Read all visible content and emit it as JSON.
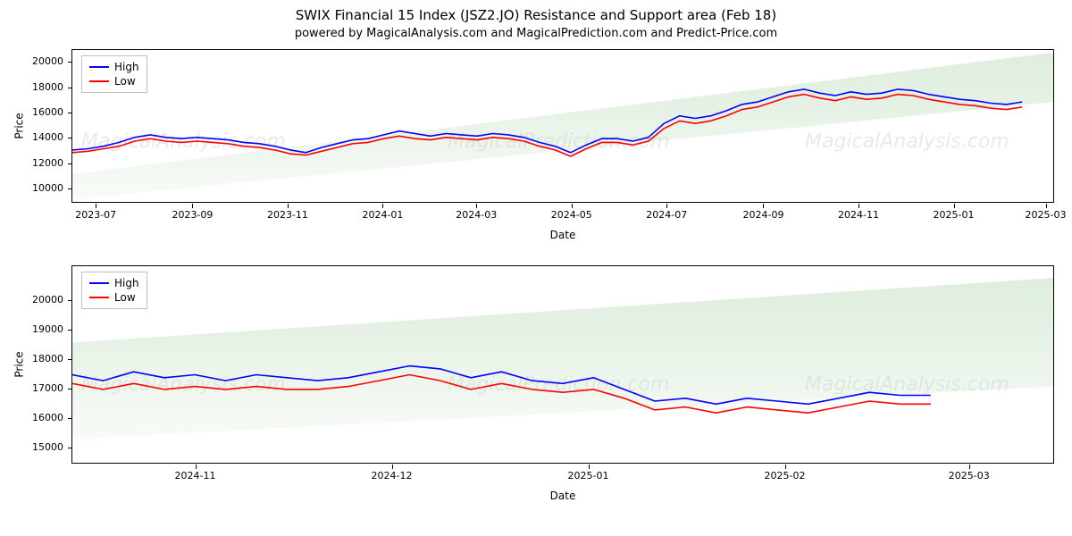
{
  "title": "SWIX Financial 15 Index (JSZ2.JO) Resistance and Support area (Feb 18)",
  "subtitle": "powered by MagicalAnalysis.com and MagicalPrediction.com and Predict-Price.com",
  "watermark_texts": [
    "MagicalAnalysis.com",
    "MagicalPrediction.com"
  ],
  "legend": {
    "items": [
      {
        "label": "High",
        "color": "#0000ff"
      },
      {
        "label": "Low",
        "color": "#ff0000"
      }
    ]
  },
  "axis_labels": {
    "x": "Date",
    "y": "Price"
  },
  "colors": {
    "background": "#ffffff",
    "border": "#000000",
    "text": "#000000",
    "band_fill": "#c5e0c3",
    "band_stroke": "#c5e0c3",
    "high_line": "#0000ff",
    "low_line": "#ff0000",
    "watermark": "#888888"
  },
  "line_width": 1.6,
  "tick_fontsize": 11,
  "label_fontsize": 12,
  "title_fontsize": 15,
  "subtitle_fontsize": 13,
  "chart_top": {
    "type": "line",
    "x_range": [
      0,
      630
    ],
    "y_range": [
      9000,
      21000
    ],
    "y_ticks": [
      10000,
      12000,
      14000,
      16000,
      18000,
      20000
    ],
    "x_ticks": [
      {
        "pos": 15,
        "label": "2023-07"
      },
      {
        "pos": 77,
        "label": "2023-09"
      },
      {
        "pos": 138,
        "label": "2023-11"
      },
      {
        "pos": 199,
        "label": "2024-01"
      },
      {
        "pos": 259,
        "label": "2024-03"
      },
      {
        "pos": 320,
        "label": "2024-05"
      },
      {
        "pos": 381,
        "label": "2024-07"
      },
      {
        "pos": 443,
        "label": "2024-09"
      },
      {
        "pos": 504,
        "label": "2024-11"
      },
      {
        "pos": 565,
        "label": "2025-01"
      },
      {
        "pos": 624,
        "label": "2025-03"
      }
    ],
    "band": {
      "x": [
        0,
        630
      ],
      "upper": [
        11200,
        20800
      ],
      "lower": [
        9200,
        16900
      ],
      "opacity_stops": [
        0.12,
        0.28,
        0.45,
        0.55
      ]
    },
    "series_x": [
      0,
      10,
      20,
      30,
      40,
      50,
      60,
      70,
      80,
      90,
      100,
      110,
      120,
      130,
      140,
      150,
      160,
      170,
      180,
      190,
      200,
      210,
      220,
      230,
      240,
      250,
      260,
      270,
      280,
      290,
      300,
      310,
      320,
      330,
      340,
      350,
      360,
      370,
      380,
      390,
      400,
      410,
      420,
      430,
      440,
      450,
      460,
      470,
      480,
      490,
      500,
      510,
      520,
      530,
      540,
      550,
      560,
      570,
      580,
      590,
      600,
      610
    ],
    "series_high": [
      13100,
      13200,
      13400,
      13700,
      14100,
      14300,
      14100,
      14000,
      14100,
      14000,
      13900,
      13700,
      13600,
      13400,
      13100,
      12900,
      13300,
      13600,
      13900,
      14000,
      14300,
      14600,
      14400,
      14200,
      14400,
      14300,
      14200,
      14400,
      14300,
      14100,
      13700,
      13400,
      12900,
      13500,
      14000,
      14000,
      13800,
      14100,
      15200,
      15800,
      15600,
      15800,
      16200,
      16700,
      16900,
      17300,
      17700,
      17900,
      17600,
      17400,
      17700,
      17500,
      17600,
      17900,
      17800,
      17500,
      17300,
      17100,
      17000,
      16800,
      16700,
      16900
    ],
    "series_low": [
      12900,
      13000,
      13200,
      13400,
      13800,
      14000,
      13800,
      13700,
      13800,
      13700,
      13600,
      13400,
      13300,
      13100,
      12800,
      12700,
      13000,
      13300,
      13600,
      13700,
      14000,
      14200,
      14000,
      13900,
      14100,
      14000,
      13900,
      14100,
      14000,
      13800,
      13400,
      13100,
      12600,
      13200,
      13700,
      13700,
      13500,
      13800,
      14800,
      15400,
      15200,
      15400,
      15800,
      16300,
      16500,
      16900,
      17300,
      17500,
      17200,
      17000,
      17300,
      17100,
      17200,
      17500,
      17400,
      17100,
      16900,
      16700,
      16600,
      16400,
      16300,
      16500
    ]
  },
  "chart_bot": {
    "type": "line",
    "x_range": [
      0,
      160
    ],
    "y_range": [
      14500,
      21200
    ],
    "y_ticks": [
      15000,
      16000,
      17000,
      18000,
      19000,
      20000
    ],
    "x_ticks": [
      {
        "pos": 20,
        "label": "2024-11"
      },
      {
        "pos": 52,
        "label": "2024-12"
      },
      {
        "pos": 84,
        "label": "2025-01"
      },
      {
        "pos": 116,
        "label": "2025-02"
      },
      {
        "pos": 146,
        "label": "2025-03"
      }
    ],
    "band": {
      "x": [
        0,
        160
      ],
      "upper": [
        18600,
        20800
      ],
      "lower": [
        15300,
        17100
      ],
      "opacity_stops": [
        0.12,
        0.28,
        0.45,
        0.55
      ]
    },
    "series_x": [
      0,
      5,
      10,
      15,
      20,
      25,
      30,
      35,
      40,
      45,
      50,
      55,
      60,
      65,
      70,
      75,
      80,
      85,
      90,
      95,
      100,
      105,
      110,
      115,
      120,
      125,
      130,
      135,
      140
    ],
    "series_high": [
      17500,
      17300,
      17600,
      17400,
      17500,
      17300,
      17500,
      17400,
      17300,
      17400,
      17600,
      17800,
      17700,
      17400,
      17600,
      17300,
      17200,
      17400,
      17000,
      16600,
      16700,
      16500,
      16700,
      16600,
      16500,
      16700,
      16900,
      16800,
      16800
    ],
    "series_low": [
      17200,
      17000,
      17200,
      17000,
      17100,
      17000,
      17100,
      17000,
      17000,
      17100,
      17300,
      17500,
      17300,
      17000,
      17200,
      17000,
      16900,
      17000,
      16700,
      16300,
      16400,
      16200,
      16400,
      16300,
      16200,
      16400,
      16600,
      16500,
      16500
    ]
  }
}
